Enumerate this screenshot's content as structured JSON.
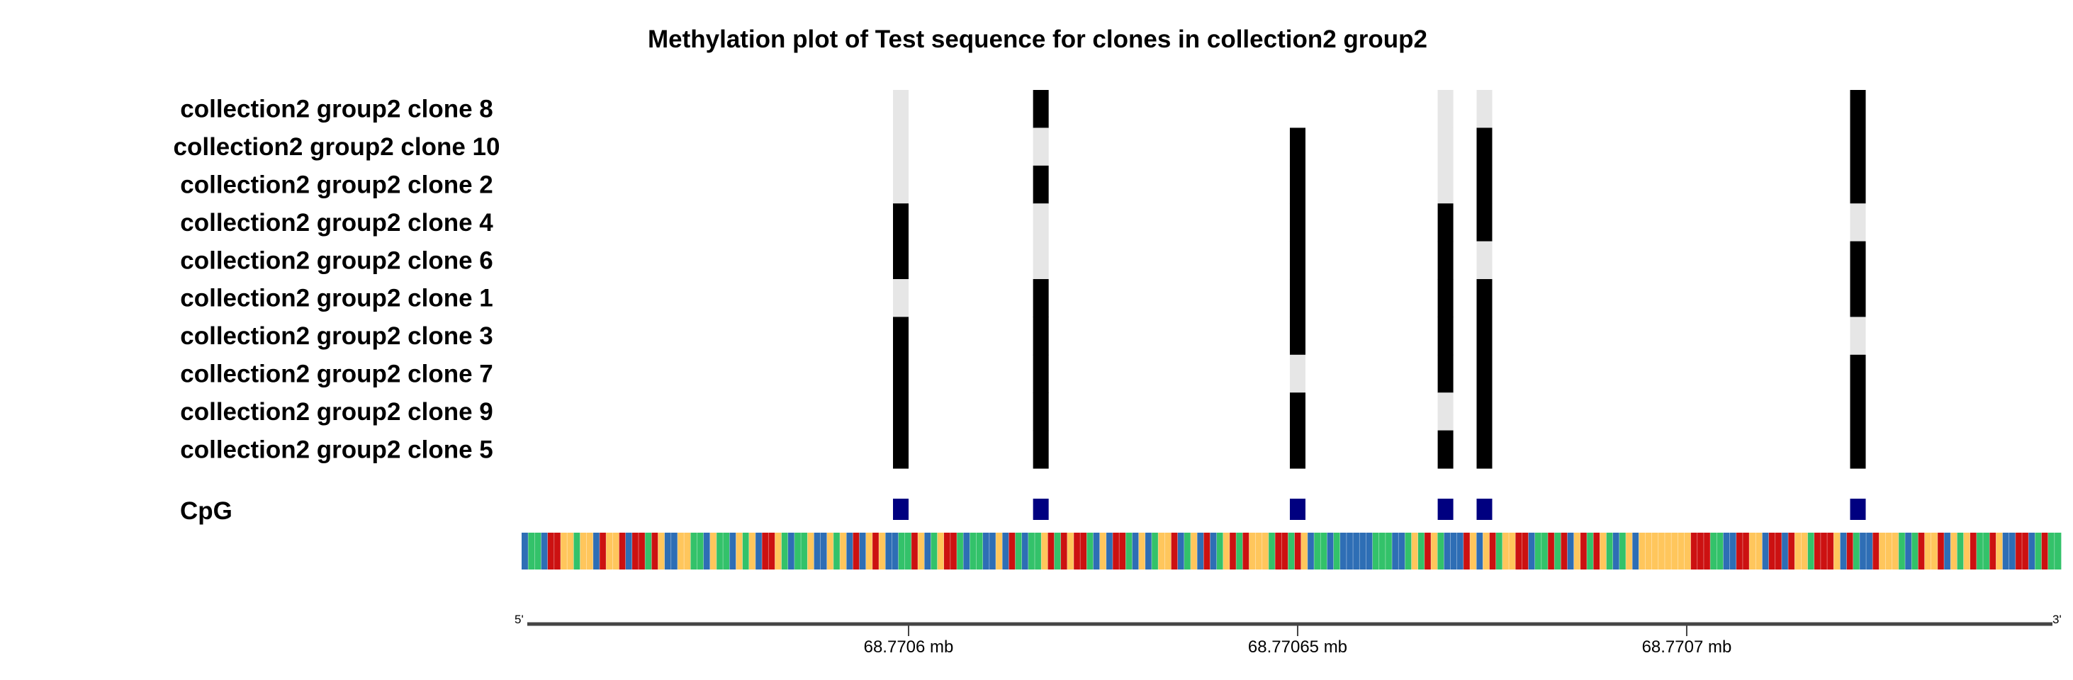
{
  "chart_data": {
    "type": "heatmap",
    "title": "Methylation plot of Test sequence for clones in collection2 group2",
    "clones": [
      "collection2 group2 clone 8",
      "collection2 group2 clone 10",
      "collection2 group2 clone 2",
      "collection2 group2 clone 4",
      "collection2 group2 clone 6",
      "collection2 group2 clone 1",
      "collection2 group2 clone 3",
      "collection2 group2 clone 7",
      "collection2 group2 clone 9",
      "collection2 group2 clone 5"
    ],
    "cpg_label": "CpG",
    "cpg_sites_mb": [
      68.770599,
      68.770617,
      68.77065,
      68.770669,
      68.770674,
      68.770722
    ],
    "methylation": [
      [
        0,
        1,
        null,
        0,
        0,
        1
      ],
      [
        0,
        0,
        1,
        0,
        1,
        1
      ],
      [
        0,
        1,
        1,
        0,
        1,
        1
      ],
      [
        1,
        0,
        1,
        1,
        1,
        0
      ],
      [
        1,
        0,
        1,
        1,
        0,
        1
      ],
      [
        0,
        1,
        1,
        1,
        1,
        1
      ],
      [
        1,
        1,
        1,
        1,
        1,
        0
      ],
      [
        1,
        1,
        0,
        1,
        1,
        1
      ],
      [
        1,
        1,
        1,
        0,
        1,
        1
      ],
      [
        1,
        1,
        1,
        1,
        1,
        1
      ]
    ],
    "state_colors": {
      "methylated": "#000000",
      "unmethylated": "#e6e6e6"
    },
    "cpg_color": "#000080",
    "sequence": "ATTACCGGTGGACGGCACCTCGAAGGTTAGTTAGTGACCGTATTGAAGTGACAGCGAATTCGATGCCTATTAAGACTATTGCTCGCCTAGACCTAGATGGCATGACATGCTCGGGTCCTCGATTATAAAAATTTAATGTCGTAAACGAGCTGGCCATTCTCAGCTCGTATGAGGGGGGGGCCCTTAACCGGACCACGGTCCCGACTAACGGGTATCGGCAGTGCTTCGAACCATCTT",
    "base_colors": {
      "A": "#2e6eb5",
      "C": "#cc1111",
      "G": "#ffc65c",
      "T": "#33c26a"
    },
    "axis": {
      "xlim_mb": [
        68.770551,
        68.770747
      ],
      "ticks_mb": [
        68.7706,
        68.77065,
        68.7707
      ],
      "tick_labels": [
        "68.7706 mb",
        "68.77065 mb",
        "68.7707 mb"
      ],
      "start_label": "5'",
      "end_label": "3'"
    }
  }
}
